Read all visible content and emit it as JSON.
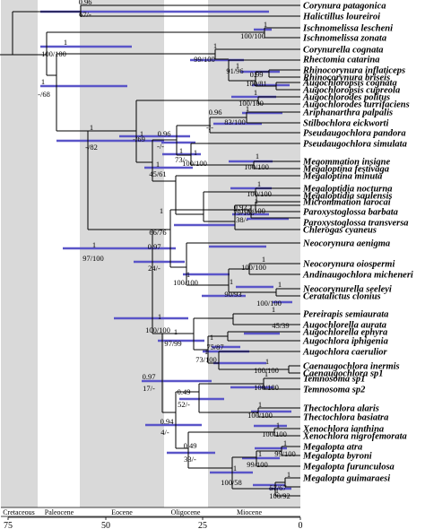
{
  "epochs": [
    {
      "name": "Cretaceous",
      "from": 75,
      "to": 66,
      "shaded": true
    },
    {
      "name": "Paleocene",
      "from": 66,
      "to": 56,
      "shaded": false
    },
    {
      "name": "Eocene",
      "from": 56,
      "to": 34,
      "shaded": true
    },
    {
      "name": "Oligocene",
      "from": 34,
      "to": 23,
      "shaded": false
    },
    {
      "name": "Miocene",
      "from": 23,
      "to": 0,
      "shaded": true
    }
  ],
  "axis": {
    "ticks": [
      75,
      50,
      25,
      0
    ],
    "tick_labels": [
      "75",
      "50",
      "25",
      "0"
    ]
  },
  "colors": {
    "shade": "#d9d9d9",
    "branch": "#000000",
    "interval_bar": "#5a55c8"
  },
  "taxa": [
    "Corynura patagonica",
    "Halictillus loureiroi",
    "Ischnomelissa lescheni",
    "Ischnomelissa zonata",
    "Corynurella cognata",
    "Rhectomia catarina",
    "Rhinocorynura inflaticeps",
    "Rhinocorynura briseis",
    "Augochloropsis cognata",
    "Augochloropsis cupreola",
    "Augochlorodes politus",
    "Augochlorodes turrifaciens",
    "Ariphanarthra palpalis",
    "Stilbochlora eickworti",
    "Pseudaugochlora pandora",
    "Pseudaugochlora simulata",
    "Megommation insigne",
    "Megaloptina festivaga",
    "Megaloptina minuta",
    "Megaloptidia nocturna",
    "Megaloptidia saulensis",
    "Micrommation larocai",
    "Paroxystoglossa barbata",
    "Paroxystoglossa transversa",
    "Chlerogas cyaneus",
    "Neocorynura aenigma",
    "Neocorynura oiospermi",
    "Andinaugochlora micheneri",
    "Neocorynurella seeleyi",
    "Ceratalictus clonius",
    "Pereirapis semiaurata",
    "Augochlorella aurata",
    "Augochlorella ephyra",
    "Augochlora iphigenia",
    "Augochlora caerulior",
    "Caenaugochlora inermis",
    "Caenaugochlora sp1",
    "Temnosoma sp1",
    "Temnosoma sp2",
    "Thectochlora alaris",
    "Thectochlora basiatra",
    "Xenochlora ianthina",
    "Xenochlora nigrofemorata",
    "Megalopta atra",
    "Megalopta byroni",
    "Megalopta furunculosa",
    "Megalopta guimaraesi"
  ],
  "support_labels": [
    {
      "text": "0.96",
      "pos": "above"
    },
    {
      "text": "67/-",
      "pos": "below"
    },
    {
      "text": "1",
      "pos": "above"
    },
    {
      "text": "100/100",
      "pos": "below"
    },
    {
      "text": "1",
      "pos": "above"
    },
    {
      "text": "100/100",
      "pos": "below"
    },
    {
      "text": "1",
      "pos": "above"
    },
    {
      "text": "-/68",
      "pos": "below"
    },
    {
      "text": "1",
      "pos": "above"
    },
    {
      "text": "99/100",
      "pos": "below"
    },
    {
      "text": "1",
      "pos": "above"
    },
    {
      "text": "91/96",
      "pos": "below"
    },
    {
      "text": "0.99",
      "pos": "above"
    },
    {
      "text": "100/81",
      "pos": "below"
    },
    {
      "text": "1",
      "pos": "above"
    },
    {
      "text": "100/100",
      "pos": "below"
    },
    {
      "text": "0.96",
      "pos": "above"
    },
    {
      "text": "-/-",
      "pos": "below"
    },
    {
      "text": "1",
      "pos": "above"
    },
    {
      "text": "83/100",
      "pos": "below"
    },
    {
      "text": "1",
      "pos": "above"
    },
    {
      "text": "100/100",
      "pos": "below"
    },
    {
      "text": "1",
      "pos": "above"
    },
    {
      "text": "-/82",
      "pos": "below"
    },
    {
      "text": "1",
      "pos": "above"
    },
    {
      "text": "-/69",
      "pos": "below"
    },
    {
      "text": "0.96",
      "pos": "above"
    },
    {
      "text": "-/-",
      "pos": "below"
    },
    {
      "text": "1",
      "pos": "above"
    },
    {
      "text": "73/-",
      "pos": "below"
    },
    {
      "text": "1",
      "pos": "above"
    },
    {
      "text": "100/100",
      "pos": "below"
    },
    {
      "text": "1",
      "pos": "above"
    },
    {
      "text": "45/61",
      "pos": "below"
    },
    {
      "text": "1",
      "pos": "above"
    },
    {
      "text": "100/100",
      "pos": "below"
    },
    {
      "text": "1",
      "pos": "above"
    },
    {
      "text": "66/76",
      "pos": "below"
    },
    {
      "text": "1",
      "pos": "above"
    },
    {
      "text": "79/100",
      "pos": "below"
    },
    {
      "text": "0.92",
      "pos": "above"
    },
    {
      "text": "38/-",
      "pos": "below"
    },
    {
      "text": "1",
      "pos": "above"
    },
    {
      "text": "97/100",
      "pos": "below"
    },
    {
      "text": "1",
      "pos": "above"
    },
    {
      "text": "100/100",
      "pos": "below"
    },
    {
      "text": "0.97",
      "pos": "above"
    },
    {
      "text": "24/-",
      "pos": "below"
    },
    {
      "text": "1",
      "pos": "above"
    },
    {
      "text": "100/100",
      "pos": "below"
    },
    {
      "text": "1",
      "pos": "above"
    },
    {
      "text": "100/100",
      "pos": "below"
    },
    {
      "text": "1",
      "pos": "above"
    },
    {
      "text": "90/93",
      "pos": "below"
    },
    {
      "text": "1",
      "pos": "above"
    },
    {
      "text": "100/100",
      "pos": "below"
    },
    {
      "text": "1",
      "pos": "above"
    },
    {
      "text": "100/100",
      "pos": "below"
    },
    {
      "text": "1",
      "pos": "above"
    },
    {
      "text": "45/39",
      "pos": "below"
    },
    {
      "text": "1",
      "pos": "above"
    },
    {
      "text": "97/99",
      "pos": "below"
    },
    {
      "text": "1",
      "pos": "above"
    },
    {
      "text": "75/87",
      "pos": "below"
    },
    {
      "text": "1",
      "pos": "above"
    },
    {
      "text": "73/100",
      "pos": "below"
    },
    {
      "text": "1",
      "pos": "above"
    },
    {
      "text": "100/100",
      "pos": "below"
    },
    {
      "text": "0.97",
      "pos": "above"
    },
    {
      "text": "17/-",
      "pos": "below"
    },
    {
      "text": "1",
      "pos": "above"
    },
    {
      "text": "100/100",
      "pos": "below"
    },
    {
      "text": "0.49",
      "pos": "above"
    },
    {
      "text": "52/-",
      "pos": "below"
    },
    {
      "text": "1",
      "pos": "above"
    },
    {
      "text": "100/100",
      "pos": "below"
    },
    {
      "text": "0.94",
      "pos": "above"
    },
    {
      "text": "4/-",
      "pos": "below"
    },
    {
      "text": "1",
      "pos": "above"
    },
    {
      "text": "100/100",
      "pos": "below"
    },
    {
      "text": "0.49",
      "pos": "above"
    },
    {
      "text": "33/-",
      "pos": "below"
    },
    {
      "text": "1",
      "pos": "above"
    },
    {
      "text": "99/100",
      "pos": "below"
    },
    {
      "text": "1",
      "pos": "above"
    },
    {
      "text": "99/100",
      "pos": "below"
    },
    {
      "text": "1",
      "pos": "above"
    },
    {
      "text": "100/58",
      "pos": "below"
    },
    {
      "text": "1",
      "pos": "above"
    },
    {
      "text": "57/67",
      "pos": "below"
    },
    {
      "text": "1",
      "pos": "above"
    },
    {
      "text": "100/92",
      "pos": "below"
    }
  ]
}
